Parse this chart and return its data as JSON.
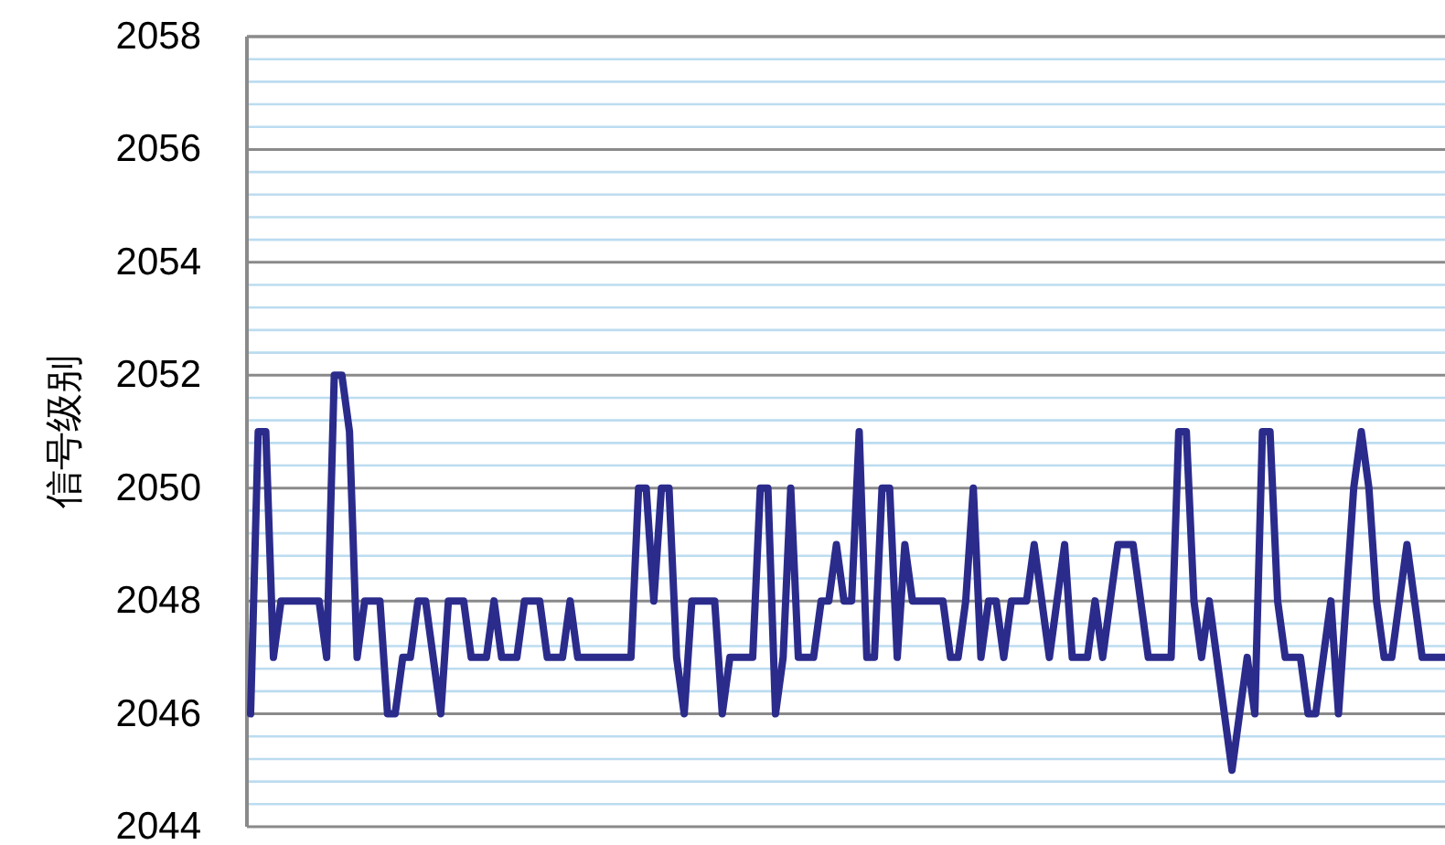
{
  "chart_data": {
    "type": "line",
    "ylabel": "信号级别",
    "categories": [
      null,
      null,
      null,
      null,
      null,
      null,
      null,
      null,
      null,
      null,
      null,
      null,
      null,
      null,
      null,
      null,
      null,
      null,
      null,
      null,
      null,
      null,
      null,
      null,
      null,
      null,
      null,
      null,
      null,
      null,
      null,
      null,
      null,
      null,
      null,
      null,
      null,
      null,
      null,
      null,
      null,
      null,
      null,
      null,
      null,
      null,
      null,
      null,
      null,
      null,
      null,
      null,
      null,
      null,
      null,
      null,
      null,
      null,
      null,
      null,
      null,
      null,
      null,
      null,
      null,
      null,
      null,
      null,
      null,
      null,
      null,
      null,
      null,
      null,
      null,
      null,
      null,
      null,
      null,
      null,
      null,
      null,
      null,
      null,
      null,
      null,
      null,
      null,
      null,
      null,
      null,
      null,
      null,
      null,
      null,
      null,
      null,
      null,
      null,
      null,
      null,
      null,
      null,
      null,
      null,
      null,
      null,
      null,
      null,
      null,
      null,
      null,
      null,
      null,
      null,
      null,
      null,
      null,
      null,
      null,
      null,
      null,
      null,
      null,
      null,
      null,
      null,
      null,
      null,
      null,
      null,
      null,
      null,
      null,
      null,
      null,
      null,
      null,
      null,
      null,
      null,
      null,
      null,
      null,
      null,
      null,
      null,
      null,
      null,
      null,
      null,
      null,
      null,
      null,
      null,
      null,
      null,
      null
    ],
    "series": [
      {
        "color": "#2b2b8c",
        "values": [
          2046,
          2051,
          2051,
          2047,
          2048,
          2048,
          2048,
          2048,
          2048,
          2048,
          2047,
          2052,
          2052,
          2051,
          2047,
          2048,
          2048,
          2048,
          2046,
          2046,
          2047,
          2047,
          2048,
          2048,
          2047,
          2046,
          2048,
          2048,
          2048,
          2047,
          2047,
          2047,
          2048,
          2047,
          2047,
          2047,
          2048,
          2048,
          2048,
          2047,
          2047,
          2047,
          2048,
          2047,
          2047,
          2047,
          2047,
          2047,
          2047,
          2047,
          2047,
          2050,
          2050,
          2048,
          2050,
          2050,
          2047,
          2046,
          2048,
          2048,
          2048,
          2048,
          2046,
          2047,
          2047,
          2047,
          2047,
          2050,
          2050,
          2046,
          2047,
          2050,
          2047,
          2047,
          2047,
          2048,
          2048,
          2049,
          2048,
          2048,
          2051,
          2047,
          2047,
          2050,
          2050,
          2047,
          2049,
          2048,
          2048,
          2048,
          2048,
          2048,
          2047,
          2047,
          2048,
          2050,
          2047,
          2048,
          2048,
          2047,
          2048,
          2048,
          2048,
          2049,
          2048,
          2047,
          2048,
          2049,
          2047,
          2047,
          2047,
          2048,
          2047,
          2048,
          2049,
          2049,
          2049,
          2048,
          2047,
          2047,
          2047,
          2047,
          2051,
          2051,
          2048,
          2047,
          2048,
          2047,
          2046,
          2045,
          2046,
          2047,
          2046,
          2051,
          2051,
          2048,
          2047,
          2047,
          2047,
          2046,
          2046,
          2047,
          2048,
          2046,
          2048,
          2050,
          2051,
          2050,
          2048,
          2047,
          2047,
          2048,
          2049,
          2048,
          2047,
          2047,
          2047,
          2047
        ]
      }
    ],
    "ylim": [
      2044,
      2058
    ],
    "yticks": [
      2044,
      {
        "value": 2044.4,
        "label": null
      },
      {
        "value": 2044.8,
        "label": null
      },
      {
        "value": 2045.2,
        "label": null
      },
      {
        "value": 2045.6,
        "label": null
      },
      2046,
      {
        "value": 2046.4,
        "label": null
      },
      {
        "value": 2046.8,
        "label": null
      },
      {
        "value": 2047.2,
        "label": null
      },
      {
        "value": 2047.6,
        "label": null
      },
      2048,
      {
        "value": 2048.4,
        "label": null
      },
      {
        "value": 2048.8,
        "label": null
      },
      {
        "value": 2049.2,
        "label": null
      },
      {
        "value": 2049.6,
        "label": null
      },
      2050,
      {
        "value": 2050.4,
        "label": null
      },
      {
        "value": 2050.8,
        "label": null
      },
      {
        "value": 2051.2,
        "label": null
      },
      {
        "value": 2051.6,
        "label": null
      },
      2052,
      {
        "value": 2052.4,
        "label": null
      },
      {
        "value": 2052.8,
        "label": null
      },
      {
        "value": 2053.2,
        "label": null
      },
      {
        "value": 2053.6,
        "label": null
      },
      2054,
      {
        "value": 2054.4,
        "label": null
      },
      {
        "value": 2054.8,
        "label": null
      },
      {
        "value": 2055.2,
        "label": null
      },
      {
        "value": 2055.6,
        "label": null
      },
      2056,
      {
        "value": 2056.4,
        "label": null
      },
      {
        "value": 2056.8,
        "label": null
      },
      {
        "value": 2057.2,
        "label": null
      },
      {
        "value": 2057.6,
        "label": null
      },
      2058
    ],
    "grid": "y",
    "marker": "none",
    "line_style": "solid"
  }
}
